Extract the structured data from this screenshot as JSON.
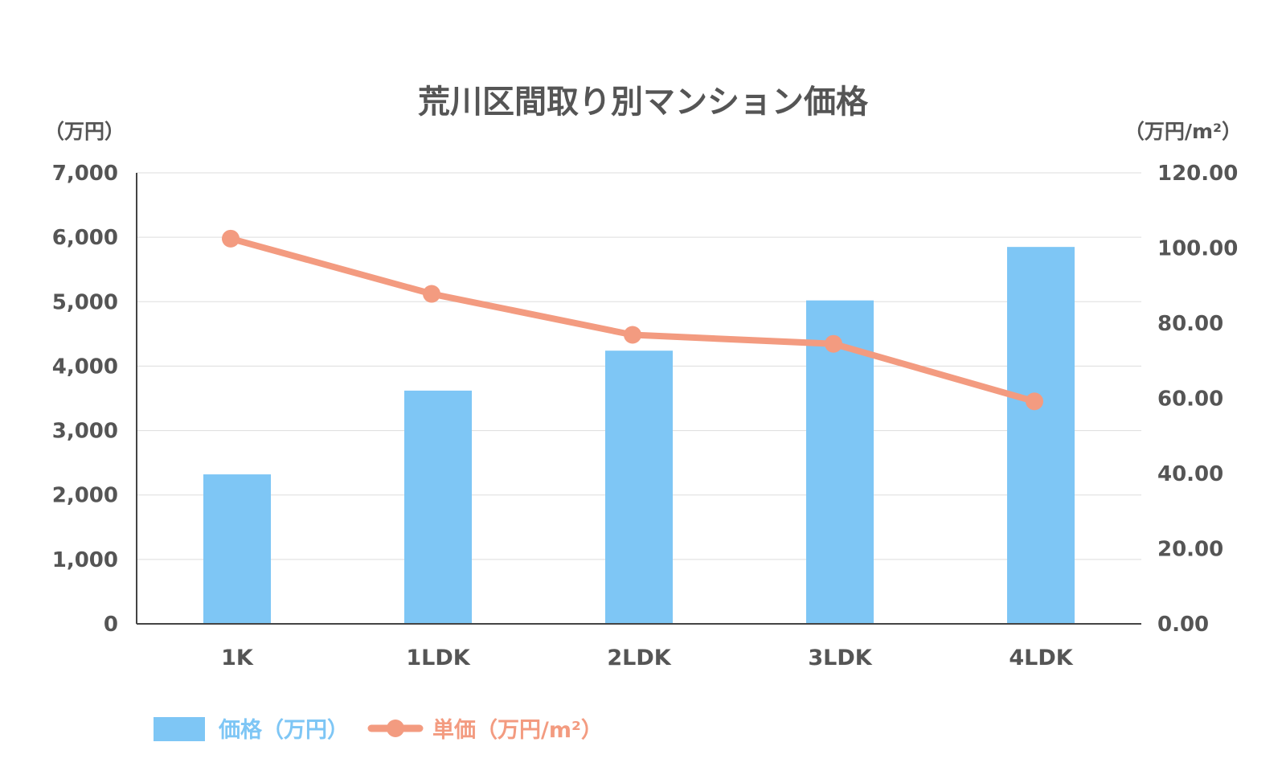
{
  "chart_data": {
    "type": "bar",
    "title": "荒川区間取り別マンション価格",
    "y_unit_left": "（万円）",
    "y_unit_right": "（万円/m²）",
    "categories": [
      "1K",
      "1LDK",
      "2LDK",
      "3LDK",
      "4LDK"
    ],
    "left_axis": {
      "ylim": [
        0,
        7000
      ],
      "ticks": [
        "0",
        "1,000",
        "2,000",
        "3,000",
        "4,000",
        "5,000",
        "6,000",
        "7,000"
      ]
    },
    "right_axis": {
      "ylim": [
        0,
        120
      ],
      "ticks": [
        "0.00",
        "20.00",
        "40.00",
        "60.00",
        "80.00",
        "100.00",
        "120.00"
      ]
    },
    "series": [
      {
        "name": "価格（万円）",
        "type": "bar",
        "axis": "left",
        "color": "#7ec6f5",
        "values": [
          2320,
          3620,
          4240,
          5020,
          5850
        ]
      },
      {
        "name": "単価（万円/m²）",
        "type": "line",
        "axis": "right",
        "color": "#f39b80",
        "values": [
          102.5,
          87.8,
          76.9,
          74.5,
          59.2
        ]
      }
    ],
    "grid": true,
    "legend_position": "bottom-left"
  }
}
